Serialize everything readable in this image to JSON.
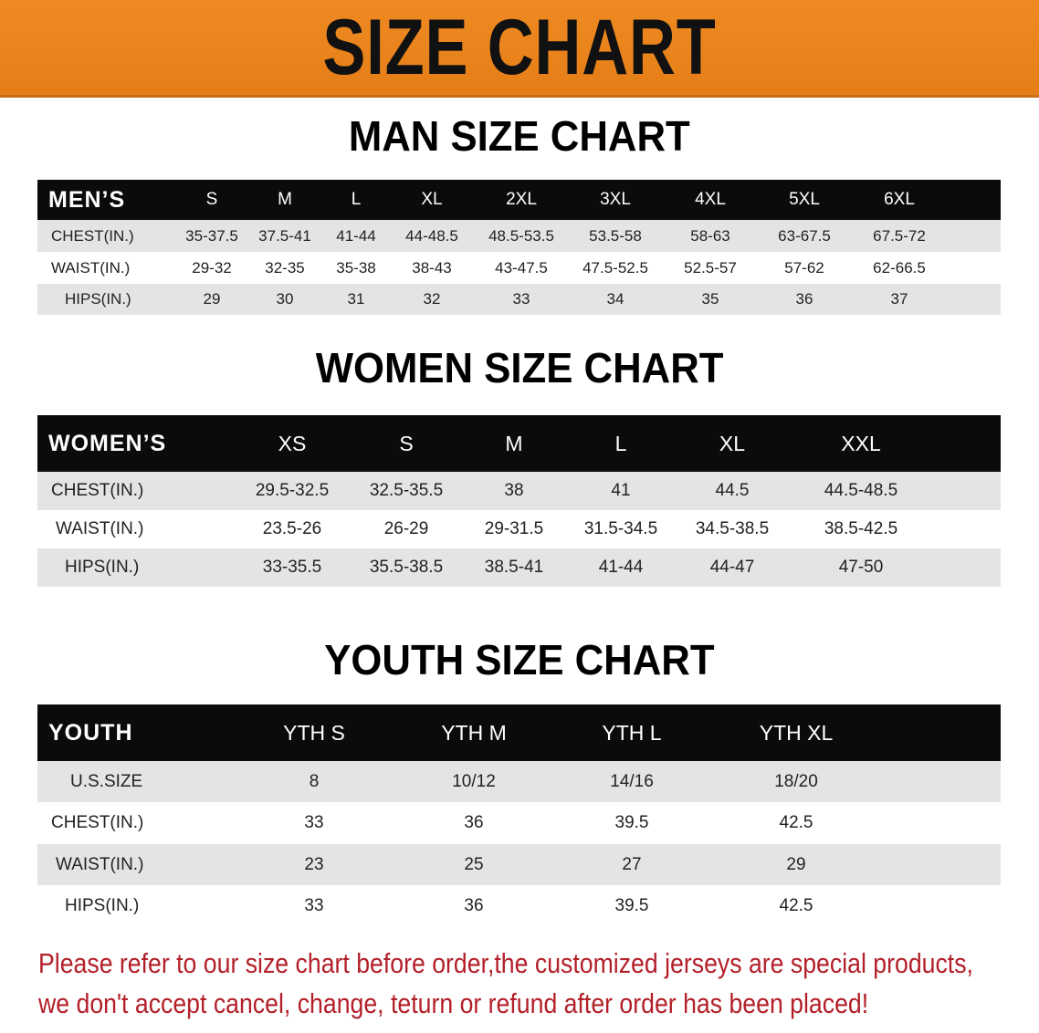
{
  "banner_title": "SIZE CHART",
  "colors": {
    "banner": "#e9831c",
    "header_row": "#0b0b0b",
    "alt_row": "#e4e4e4",
    "notice": "#b3202a"
  },
  "men": {
    "title": "MAN SIZE CHART",
    "header_label": "MEN’S",
    "sizes": [
      "S",
      "M",
      "L",
      "XL",
      "2XL",
      "3XL",
      "4XL",
      "5XL",
      "6XL"
    ],
    "rows": [
      {
        "label": "CHEST(IN.)",
        "values": [
          "35-37.5",
          "37.5-41",
          "41-44",
          "44-48.5",
          "48.5-53.5",
          "53.5-58",
          "58-63",
          "63-67.5",
          "67.5-72"
        ]
      },
      {
        "label": "WAIST(IN.)",
        "values": [
          "29-32",
          "32-35",
          "35-38",
          "38-43",
          "43-47.5",
          "47.5-52.5",
          "52.5-57",
          "57-62",
          "62-66.5"
        ]
      },
      {
        "label": "HIPS(IN.)",
        "values": [
          "29",
          "30",
          "31",
          "32",
          "33",
          "34",
          "35",
          "36",
          "37"
        ]
      }
    ]
  },
  "women": {
    "title": "WOMEN SIZE CHART",
    "header_label": "WOMEN’S",
    "sizes": [
      "XS",
      "S",
      "M",
      "L",
      "XL",
      "XXL"
    ],
    "rows": [
      {
        "label": "CHEST(IN.)",
        "values": [
          "29.5-32.5",
          "32.5-35.5",
          "38",
          "41",
          "44.5",
          "44.5-48.5"
        ]
      },
      {
        "label": "WAIST(IN.)",
        "values": [
          "23.5-26",
          "26-29",
          "29-31.5",
          "31.5-34.5",
          "34.5-38.5",
          "38.5-42.5"
        ]
      },
      {
        "label": "HIPS(IN.)",
        "values": [
          "33-35.5",
          "35.5-38.5",
          "38.5-41",
          "41-44",
          "44-47",
          "47-50"
        ]
      }
    ]
  },
  "youth": {
    "title": "YOUTH SIZE CHART",
    "header_label": "YOUTH",
    "sizes": [
      "YTH S",
      "YTH M",
      "YTH L",
      "YTH XL"
    ],
    "rows": [
      {
        "label": "U.S.SIZE",
        "values": [
          "8",
          "10/12",
          "14/16",
          "18/20"
        ]
      },
      {
        "label": "CHEST(IN.)",
        "values": [
          "33",
          "36",
          "39.5",
          "42.5"
        ]
      },
      {
        "label": "WAIST(IN.)",
        "values": [
          "23",
          "25",
          "27",
          "29"
        ]
      },
      {
        "label": "HIPS(IN.)",
        "values": [
          "33",
          "36",
          "39.5",
          "42.5"
        ]
      }
    ]
  },
  "notice": {
    "line1": "Please refer to our size chart before order,the customized jerseys are special products,",
    "line2": "we don't accept cancel, change, teturn or refund after order has been placed!"
  }
}
